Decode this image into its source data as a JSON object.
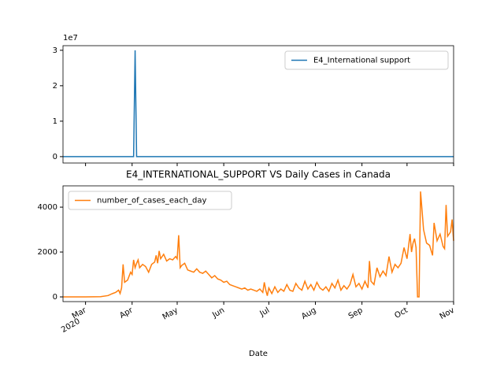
{
  "chart_data": [
    {
      "type": "line",
      "y_offset_label": "1e7",
      "x": [
        -15,
        32,
        33,
        34,
        245
      ],
      "series": [
        {
          "name": "E4_International support",
          "color": "#1f77b4",
          "values": [
            0,
            0,
            3,
            0,
            0
          ]
        }
      ],
      "xlim": [
        -15,
        245
      ],
      "ylim": [
        -0.18,
        3.13
      ],
      "yticks": [
        0,
        1,
        2,
        3
      ],
      "legend": "upper right"
    },
    {
      "type": "line",
      "title": "E4_INTERNATIONAL_SUPPORT VS Daily Cases in Canada",
      "x_label": "Date",
      "x_year_label": "2020",
      "x": [
        -15,
        0,
        10,
        15,
        18,
        20,
        22,
        23,
        24,
        25,
        26,
        28,
        30,
        31,
        32,
        33,
        34,
        35,
        36,
        38,
        40,
        42,
        44,
        46,
        47,
        48,
        49,
        50,
        52,
        54,
        56,
        58,
        60,
        61,
        62,
        63,
        64,
        66,
        68,
        70,
        72,
        74,
        76,
        78,
        80,
        82,
        84,
        86,
        88,
        90,
        92,
        94,
        96,
        98,
        100,
        102,
        104,
        106,
        108,
        110,
        112,
        114,
        116,
        118,
        119,
        120,
        121,
        122,
        124,
        126,
        128,
        130,
        132,
        134,
        136,
        138,
        140,
        142,
        144,
        146,
        148,
        150,
        152,
        154,
        156,
        158,
        160,
        162,
        164,
        166,
        168,
        170,
        172,
        174,
        176,
        178,
        180,
        182,
        184,
        186,
        188,
        189,
        190,
        192,
        194,
        196,
        198,
        200,
        202,
        204,
        206,
        208,
        210,
        212,
        214,
        216,
        217,
        218,
        219,
        220,
        221,
        222,
        223,
        225,
        227,
        229,
        231,
        232,
        234,
        236,
        238,
        239,
        240,
        241,
        243,
        244,
        245
      ],
      "series": [
        {
          "name": "number_of_cases_each_day",
          "color": "#ff7f0e",
          "values": [
            0,
            0,
            10,
            60,
            150,
            200,
            300,
            150,
            400,
            1450,
            650,
            750,
            1100,
            1000,
            1650,
            1300,
            1500,
            1650,
            1300,
            1450,
            1350,
            1100,
            1450,
            1550,
            1850,
            1500,
            2050,
            1700,
            1900,
            1600,
            1700,
            1650,
            1800,
            1700,
            2750,
            1300,
            1400,
            1500,
            1200,
            1150,
            1100,
            1250,
            1100,
            1050,
            1150,
            1000,
            850,
            950,
            800,
            750,
            650,
            700,
            550,
            500,
            450,
            400,
            350,
            400,
            300,
            350,
            300,
            250,
            350,
            200,
            650,
            300,
            50,
            400,
            150,
            450,
            200,
            350,
            250,
            550,
            300,
            250,
            600,
            400,
            300,
            700,
            350,
            550,
            300,
            650,
            400,
            300,
            450,
            250,
            600,
            400,
            750,
            300,
            500,
            350,
            550,
            1000,
            450,
            600,
            350,
            700,
            400,
            1600,
            700,
            550,
            1300,
            900,
            1150,
            950,
            1800,
            1100,
            1450,
            1300,
            1500,
            2200,
            1700,
            2800,
            2000,
            2400,
            2600,
            2200,
            0,
            0,
            4700,
            3000,
            2400,
            2300,
            1850,
            3300,
            2500,
            2800,
            2250,
            2150,
            4100,
            2700,
            2900,
            3450,
            2500
          ]
        }
      ],
      "xlim": [
        -15,
        245
      ],
      "xticks": [
        {
          "value": 0,
          "label": "Mar"
        },
        {
          "value": 31,
          "label": "Apr"
        },
        {
          "value": 61,
          "label": "May"
        },
        {
          "value": 92,
          "label": "Jun"
        },
        {
          "value": 122,
          "label": "Jul"
        },
        {
          "value": 153,
          "label": "Aug"
        },
        {
          "value": 184,
          "label": "Sep"
        },
        {
          "value": 214,
          "label": "Oct"
        },
        {
          "value": 245,
          "label": "Nov"
        }
      ],
      "ylim": [
        -210,
        4950
      ],
      "yticks": [
        0,
        2000,
        4000
      ],
      "legend": "upper left"
    }
  ]
}
